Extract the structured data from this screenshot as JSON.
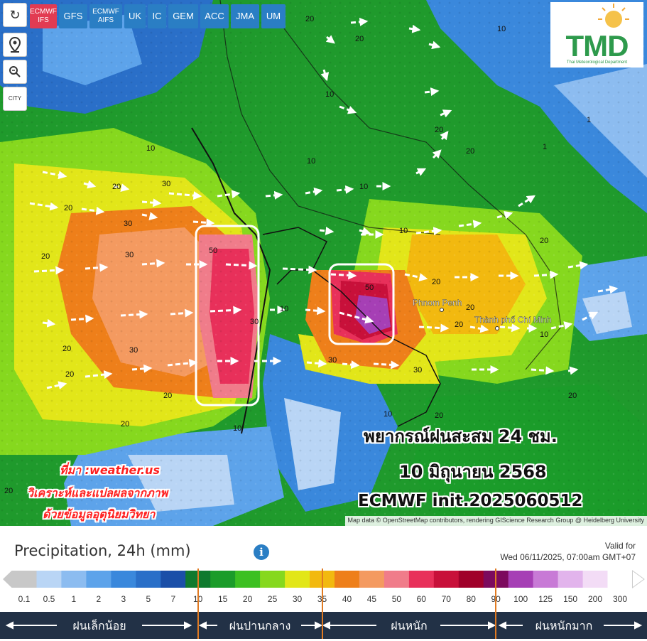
{
  "toolbar": {
    "refresh_icon": "refresh-icon",
    "location_icon": "map-pin-icon",
    "zoom_icon": "magnifier-icon",
    "city_label": "CITY"
  },
  "models": [
    {
      "label": "ECMWF IFS",
      "active": true
    },
    {
      "label": "GFS",
      "active": false
    },
    {
      "label": "ECMWF AIFS",
      "active": false
    },
    {
      "label": "UK",
      "active": false
    },
    {
      "label": "IC",
      "active": false
    },
    {
      "label": "GEM",
      "active": false
    },
    {
      "label": "ACC",
      "active": false
    },
    {
      "label": "JMA",
      "active": false
    },
    {
      "label": "UM",
      "active": false
    }
  ],
  "logo": {
    "text": "TMD",
    "subtitle": "Thai Meteorological Department"
  },
  "map": {
    "place_labels": [
      "Phnom Penh",
      "Thành phố Chí Minh"
    ],
    "contour_labels": [
      "1",
      "10",
      "20",
      "30",
      "50"
    ]
  },
  "forecast": {
    "line1": "พยากรณ์ฝนสะสม 24 ชม.",
    "line2": "10 มิถุนายน 2568",
    "line3": "ECMWF init.2025060512"
  },
  "source": {
    "line1": "ที่มา :weather.us",
    "line2": "วิเคราะห์และแปลผลจากภาพ",
    "line3": "ด้วยข้อมูลอุตุนิยมวิทยา"
  },
  "attribution": "Map data © OpenStreetMap contributors, rendering GIScience Research Group @ Heidelberg University",
  "legend": {
    "title": "Precipitation, 24h (mm)",
    "valid_label": "Valid for",
    "valid_time": "Wed 06/11/2025, 07:00am GMT+07",
    "scale_values": [
      "0.1",
      "0.5",
      "1",
      "2",
      "3",
      "5",
      "7",
      "10",
      "15",
      "20",
      "25",
      "30",
      "35",
      "40",
      "45",
      "50",
      "60",
      "70",
      "80",
      "90",
      "100",
      "125",
      "150",
      "200",
      "300"
    ],
    "scale_colors": [
      "#c8c8c8",
      "#b9d5f5",
      "#8cbcf0",
      "#5da3ea",
      "#3a88dc",
      "#2a6fc8",
      "#1b4fa8",
      "#0f7a2e",
      "#1b9c2a",
      "#3cc022",
      "#86d81e",
      "#e2e619",
      "#f2b90f",
      "#ee7f1a",
      "#f49a60",
      "#f07c8a",
      "#e8305a",
      "#c8103a",
      "#a0002a",
      "#7c0a5e",
      "#a63fb5",
      "#c87ad6",
      "#e2b4ec",
      "#f3dcf6",
      "#ffffff"
    ],
    "categories": [
      {
        "label": "ฝนเล็กน้อย"
      },
      {
        "label": "ฝนปานกลาง"
      },
      {
        "label": "ฝนหนัก"
      },
      {
        "label": "ฝนหนักมาก"
      }
    ]
  },
  "colors": {
    "active_tab": "#e23b52",
    "tab": "#2a7ec4",
    "tmd_green": "#2e9a4c",
    "category_bar": "#223146",
    "divider": "#e07a22"
  }
}
